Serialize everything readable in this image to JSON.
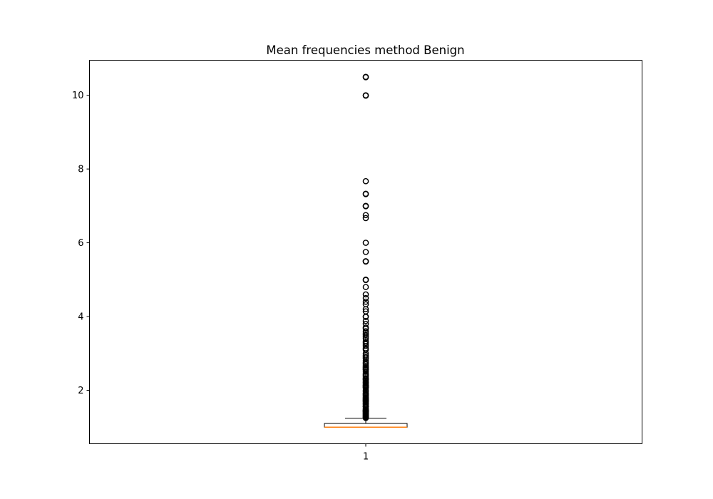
{
  "chart_data": {
    "type": "box",
    "title": "Mean frequencies method Benign",
    "xlabel": "",
    "ylabel": "",
    "categories": [
      "1"
    ],
    "ylim": [
      0.55,
      10.95
    ],
    "yticks": [
      2,
      4,
      6,
      8,
      10
    ],
    "grid": false,
    "legend": "none",
    "series": [
      {
        "category": "1",
        "whisker_low": 1.0,
        "q1": 1.0,
        "median": 1.0,
        "q3": 1.1,
        "whisker_high": 1.24,
        "outliers": [
          10.5,
          10.49,
          10.0,
          9.99,
          7.67,
          7.33,
          7.32,
          7.0,
          6.99,
          6.75,
          6.67,
          6.0,
          5.75,
          5.5,
          5.49,
          5.0,
          4.99,
          4.8,
          4.6,
          4.5,
          4.4,
          4.33,
          4.2,
          4.14,
          4.0,
          3.99,
          3.88,
          3.8,
          3.7,
          3.67,
          3.6,
          3.55,
          3.5,
          3.45,
          3.4,
          3.33,
          3.29,
          3.25,
          3.2,
          3.14,
          3.1,
          3.0,
          2.95,
          2.9,
          2.86,
          2.8,
          2.75,
          2.71,
          2.67,
          2.63,
          2.6,
          2.57,
          2.55,
          2.5,
          2.45,
          2.43,
          2.4,
          2.38,
          2.33,
          2.3,
          2.29,
          2.25,
          2.22,
          2.2,
          2.17,
          2.14,
          2.13,
          2.11,
          2.1,
          2.08,
          2.06,
          2.0,
          1.96,
          1.92,
          1.9,
          1.88,
          1.86,
          1.83,
          1.8,
          1.78,
          1.75,
          1.73,
          1.71,
          1.7,
          1.67,
          1.64,
          1.63,
          1.6,
          1.57,
          1.56,
          1.55,
          1.5,
          1.47,
          1.45,
          1.44,
          1.43,
          1.42,
          1.4,
          1.38,
          1.36,
          1.35,
          1.33,
          1.31,
          1.3,
          1.29,
          1.27,
          1.26,
          1.25
        ]
      }
    ]
  },
  "colors": {
    "box": "#000000",
    "median": "#ff7f0e",
    "outlier": "#000000",
    "background": "#ffffff"
  }
}
